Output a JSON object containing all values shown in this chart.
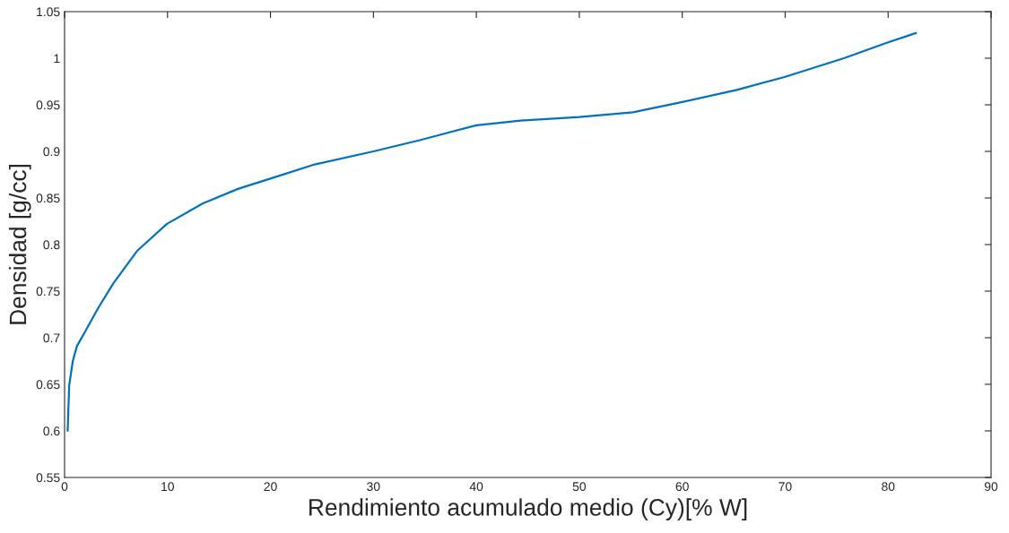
{
  "chart_data": {
    "type": "line",
    "xlabel": "Rendimiento acumulado medio (Cy)[% W]",
    "ylabel": "Densidad [g/cc]",
    "series": [
      {
        "color": "#0072bd",
        "x": [
          0.3,
          0.45,
          0.8,
          1.2,
          1.97,
          3.27,
          4.72,
          7.03,
          9.92,
          13.4,
          16.9,
          20.6,
          24.3,
          30,
          34.5,
          40,
          44.3,
          50,
          55.2,
          60,
          65.3,
          70,
          75.7,
          80,
          82.7
        ],
        "values": [
          0.6,
          0.649,
          0.675,
          0.691,
          0.706,
          0.732,
          0.758,
          0.793,
          0.822,
          0.844,
          0.86,
          0.873,
          0.886,
          0.9,
          0.912,
          0.928,
          0.933,
          0.937,
          0.942,
          0.953,
          0.966,
          0.98,
          1.0,
          1.017,
          1.027
        ]
      }
    ],
    "xlim": [
      0,
      90
    ],
    "xticks": [
      0,
      10,
      20,
      30,
      40,
      50,
      60,
      70,
      80,
      90
    ],
    "ylim": [
      0.55,
      1.05
    ],
    "yticks": [
      0.55,
      0.6,
      0.65,
      0.7,
      0.75,
      0.8,
      0.85,
      0.9,
      0.95,
      1,
      1.05
    ],
    "grid": false,
    "legend": false,
    "marker": "none",
    "line_style": "solid"
  }
}
